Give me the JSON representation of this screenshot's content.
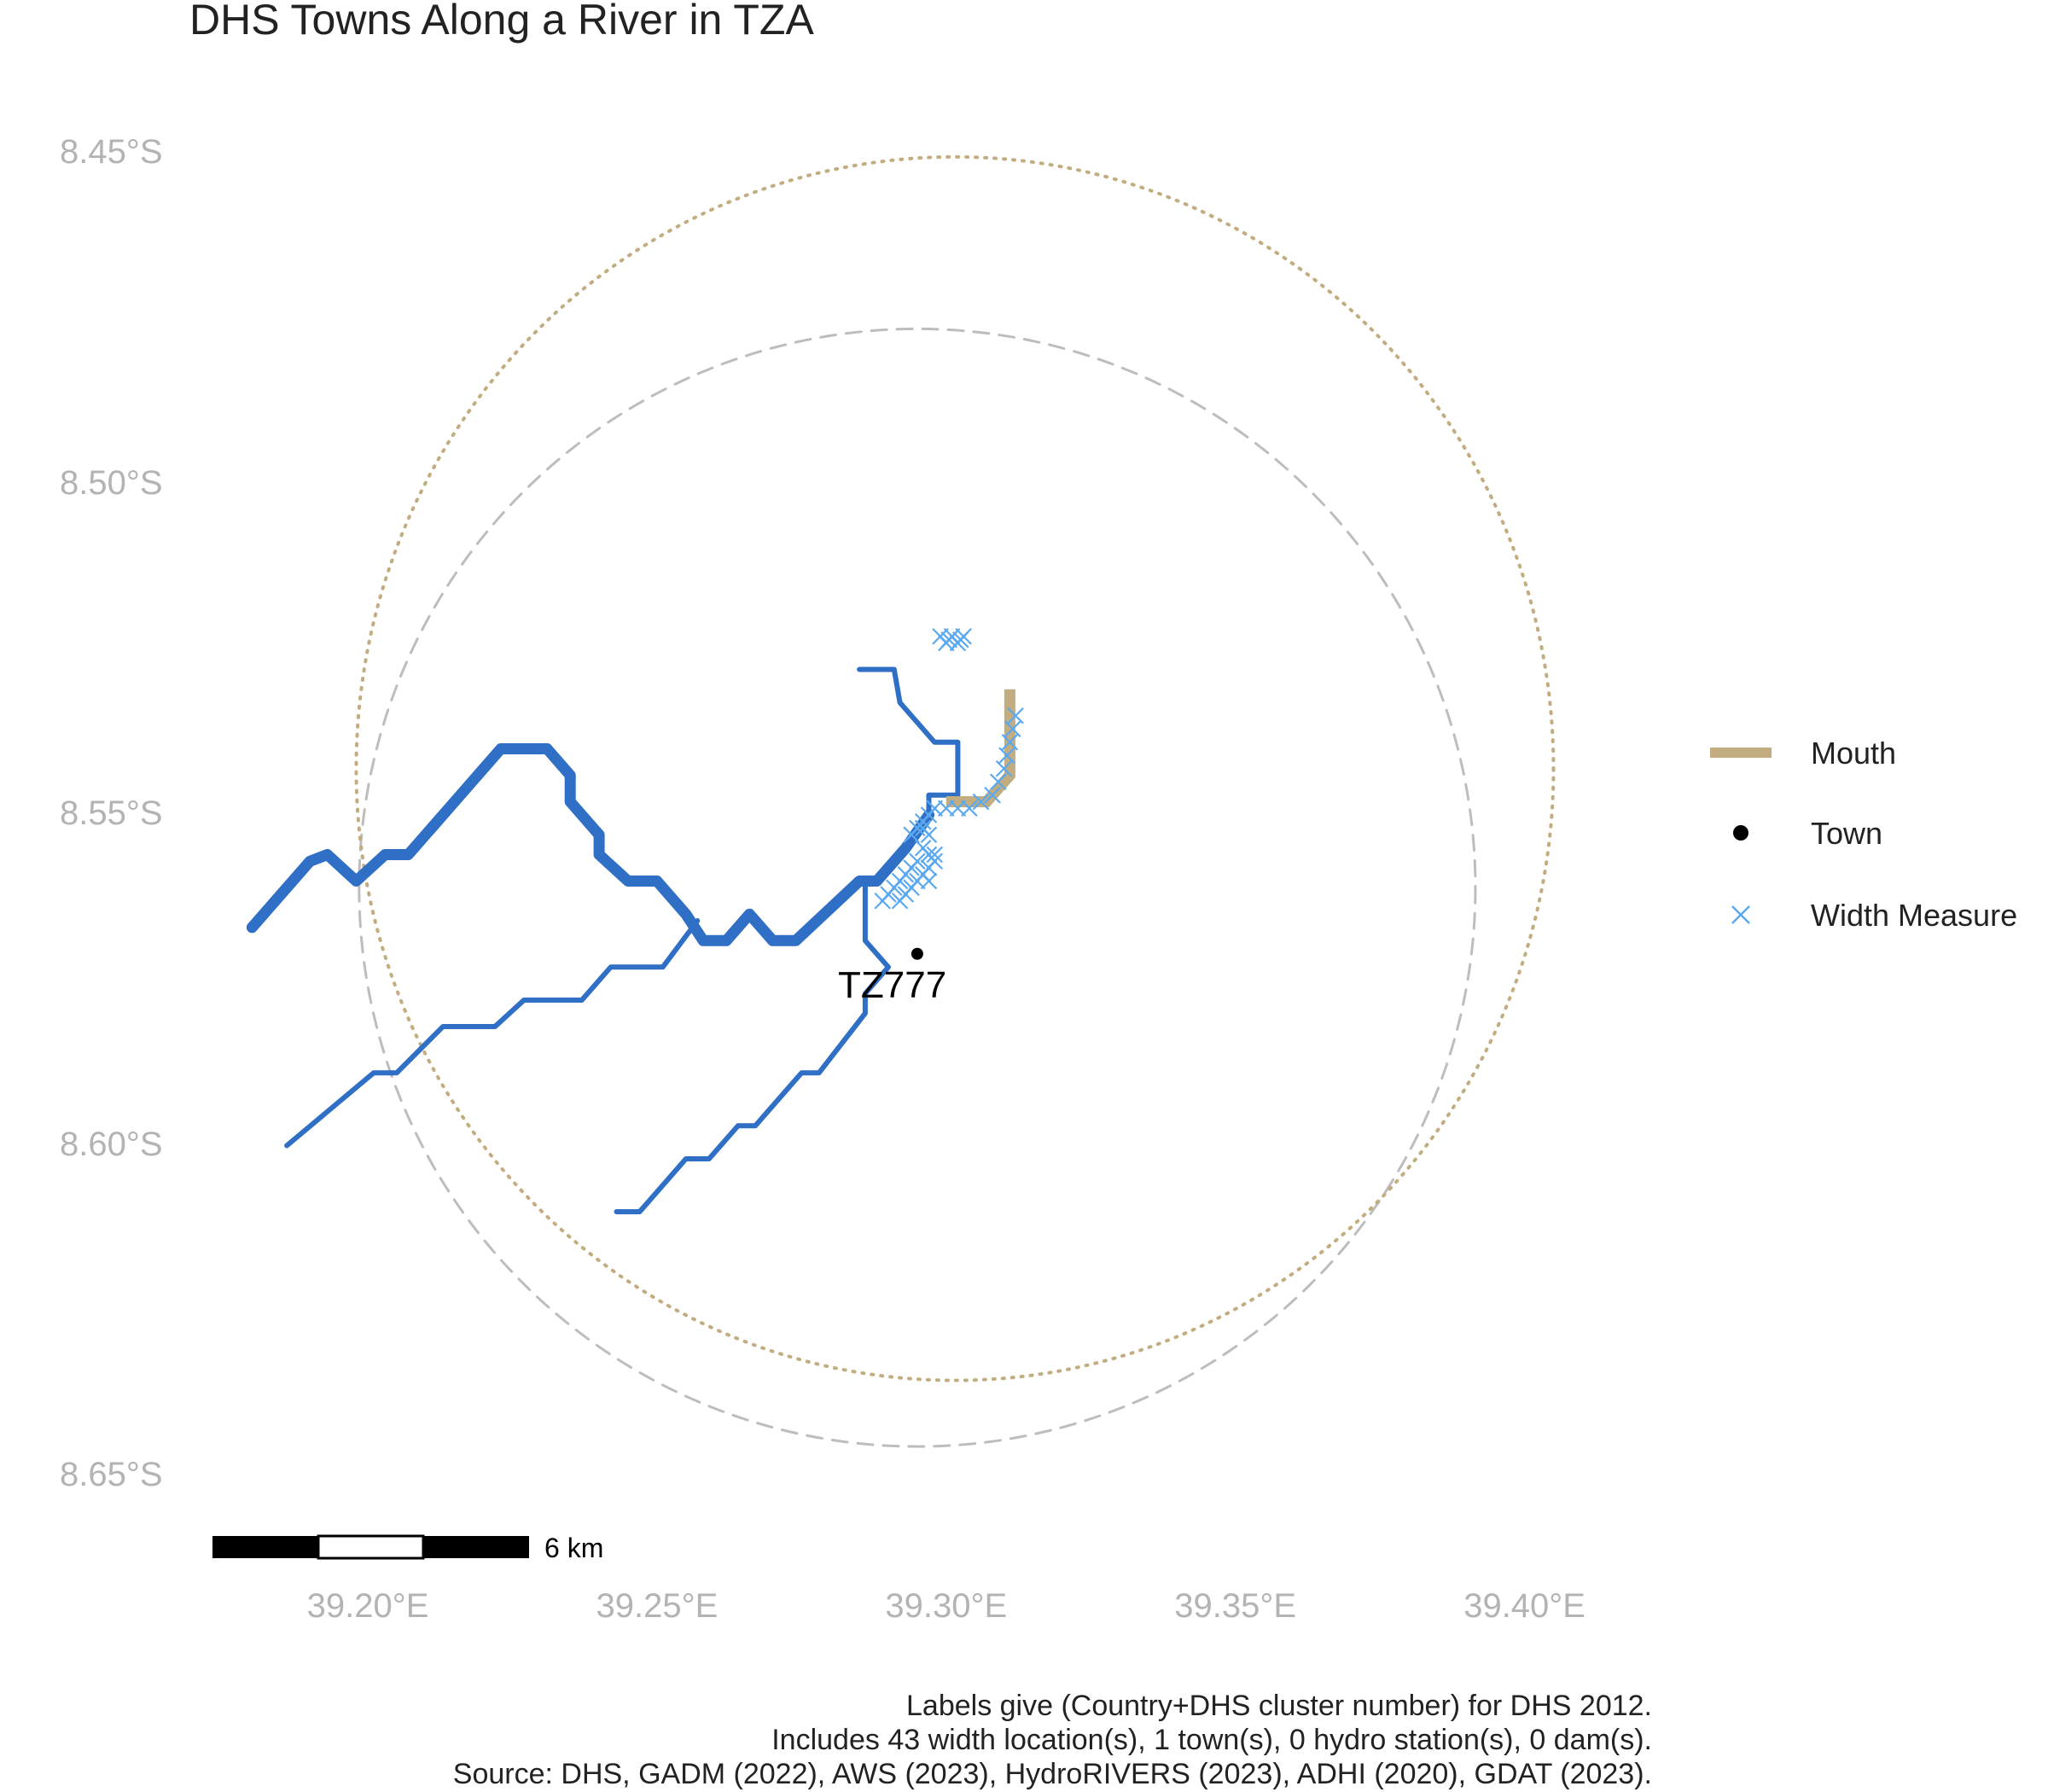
{
  "title": "DHS Towns Along a River in TZA",
  "chart_data": {
    "type": "map",
    "crs": "lon/lat",
    "xlim": [
      39.165,
      39.42
    ],
    "ylim": [
      8.66,
      8.44
    ],
    "x_ticks": [
      {
        "value": 39.2,
        "label": "39.20°E"
      },
      {
        "value": 39.25,
        "label": "39.25°E"
      },
      {
        "value": 39.3,
        "label": "39.30°E"
      },
      {
        "value": 39.35,
        "label": "39.35°E"
      },
      {
        "value": 39.4,
        "label": "39.40°E"
      }
    ],
    "y_ticks": [
      {
        "value": 8.45,
        "label": "8.45°S"
      },
      {
        "value": 8.5,
        "label": "8.50°S"
      },
      {
        "value": 8.55,
        "label": "8.55°S"
      },
      {
        "value": 8.6,
        "label": "8.60°S"
      },
      {
        "value": 8.65,
        "label": "8.65°S"
      }
    ],
    "grid": false,
    "rivers": [
      {
        "order": "main",
        "color": "#2f6fc5",
        "points": [
          [
            39.18,
            8.567
          ],
          [
            39.19,
            8.557
          ],
          [
            39.193,
            8.556
          ],
          [
            39.198,
            8.56
          ],
          [
            39.203,
            8.556
          ],
          [
            39.207,
            8.556
          ],
          [
            39.215,
            8.548
          ],
          [
            39.223,
            8.54
          ],
          [
            39.231,
            8.54
          ],
          [
            39.235,
            8.544
          ],
          [
            39.235,
            8.548
          ],
          [
            39.24,
            8.553
          ],
          [
            39.24,
            8.556
          ],
          [
            39.245,
            8.56
          ],
          [
            39.25,
            8.56
          ],
          [
            39.255,
            8.565
          ],
          [
            39.258,
            8.569
          ],
          [
            39.262,
            8.569
          ],
          [
            39.266,
            8.565
          ],
          [
            39.27,
            8.569
          ],
          [
            39.274,
            8.569
          ],
          [
            39.285,
            8.56
          ],
          [
            39.288,
            8.56
          ],
          [
            39.293,
            8.555
          ],
          [
            39.297,
            8.55
          ]
        ]
      },
      {
        "order": "trib",
        "color": "#2f6fc5",
        "points": [
          [
            39.297,
            8.55
          ],
          [
            39.297,
            8.547
          ],
          [
            39.302,
            8.547
          ],
          [
            39.302,
            8.543
          ],
          [
            39.302,
            8.539
          ],
          [
            39.298,
            8.539
          ],
          [
            39.292,
            8.533
          ],
          [
            39.291,
            8.528
          ],
          [
            39.285,
            8.528
          ]
        ]
      },
      {
        "order": "trib",
        "color": "#2f6fc5",
        "points": [
          [
            39.286,
            8.56
          ],
          [
            39.286,
            8.569
          ],
          [
            39.29,
            8.573
          ],
          [
            39.286,
            8.577
          ],
          [
            39.286,
            8.58
          ],
          [
            39.278,
            8.589
          ],
          [
            39.275,
            8.589
          ],
          [
            39.267,
            8.597
          ],
          [
            39.264,
            8.597
          ],
          [
            39.259,
            8.602
          ],
          [
            39.255,
            8.602
          ],
          [
            39.247,
            8.61
          ],
          [
            39.243,
            8.61
          ]
        ]
      },
      {
        "order": "trib",
        "color": "#2f6fc5",
        "points": [
          [
            39.257,
            8.566
          ],
          [
            39.251,
            8.573
          ],
          [
            39.242,
            8.573
          ],
          [
            39.237,
            8.578
          ],
          [
            39.227,
            8.578
          ],
          [
            39.222,
            8.582
          ],
          [
            39.213,
            8.582
          ],
          [
            39.205,
            8.589
          ],
          [
            39.201,
            8.589
          ],
          [
            39.186,
            8.6
          ]
        ]
      }
    ],
    "mouth": {
      "color": "#c2ad80",
      "points": [
        [
          39.3,
          8.548
        ],
        [
          39.307,
          8.548
        ],
        [
          39.311,
          8.544
        ],
        [
          39.311,
          8.531
        ]
      ]
    },
    "town": {
      "lon": 39.295,
      "lat": 8.571,
      "label": "TZ777",
      "color": "#000000"
    },
    "width_measures": {
      "color": "#5aa8f0",
      "count": 43,
      "points": [
        [
          39.299,
          8.523
        ],
        [
          39.3,
          8.524
        ],
        [
          39.301,
          8.523
        ],
        [
          39.302,
          8.524
        ],
        [
          39.303,
          8.523
        ],
        [
          39.3005,
          8.5235
        ],
        [
          39.3025,
          8.5235
        ],
        [
          39.312,
          8.535
        ],
        [
          39.3115,
          8.537
        ],
        [
          39.311,
          8.539
        ],
        [
          39.3105,
          8.541
        ],
        [
          39.31,
          8.543
        ],
        [
          39.309,
          8.545
        ],
        [
          39.308,
          8.547
        ],
        [
          39.306,
          8.548
        ],
        [
          39.304,
          8.549
        ],
        [
          39.302,
          8.549
        ],
        [
          39.3,
          8.549
        ],
        [
          39.298,
          8.549
        ],
        [
          39.297,
          8.55
        ],
        [
          39.296,
          8.551
        ],
        [
          39.295,
          8.552
        ],
        [
          39.294,
          8.553
        ],
        [
          39.296,
          8.552
        ],
        [
          39.297,
          8.553
        ],
        [
          39.296,
          8.555
        ],
        [
          39.297,
          8.556
        ],
        [
          39.298,
          8.557
        ],
        [
          39.297,
          8.558
        ],
        [
          39.296,
          8.559
        ],
        [
          39.295,
          8.56
        ],
        [
          39.294,
          8.561
        ],
        [
          39.293,
          8.562
        ],
        [
          39.292,
          8.563
        ],
        [
          39.295,
          8.557
        ],
        [
          39.294,
          8.558
        ],
        [
          39.293,
          8.559
        ],
        [
          39.292,
          8.56
        ],
        [
          39.291,
          8.561
        ],
        [
          39.29,
          8.562
        ],
        [
          39.289,
          8.563
        ],
        [
          39.298,
          8.556
        ],
        [
          39.297,
          8.56
        ]
      ]
    },
    "buffers": [
      {
        "style": "dashed",
        "color": "#bdbdbd",
        "center_lon": 39.295,
        "center_lat": 8.561,
        "radius_x_deg": 0.0965,
        "radius_y_deg": 0.0845
      },
      {
        "style": "dotted",
        "color": "#c2ad80",
        "center_lon": 39.3015,
        "center_lat": 8.543,
        "radius_x_deg": 0.1035,
        "radius_y_deg": 0.0925
      }
    ],
    "legend": {
      "placement": "right",
      "entries": [
        {
          "label": "Mouth",
          "symbol": "line",
          "color": "#c2ad80"
        },
        {
          "label": "Town",
          "symbol": "point",
          "color": "#000000"
        },
        {
          "label": "Width Measure",
          "symbol": "cross",
          "color": "#5aa8f0"
        }
      ]
    }
  },
  "scalebar": {
    "label": "6 km"
  },
  "caption": [
    "Labels give (Country+DHS cluster number) for DHS 2012.",
    "Includes 43 width location(s), 1 town(s), 0 hydro station(s), 0 dam(s).",
    "Source: DHS, GADM (2022), AWS (2023), HydroRIVERS (2023), ADHI (2020), GDAT (2023)."
  ]
}
